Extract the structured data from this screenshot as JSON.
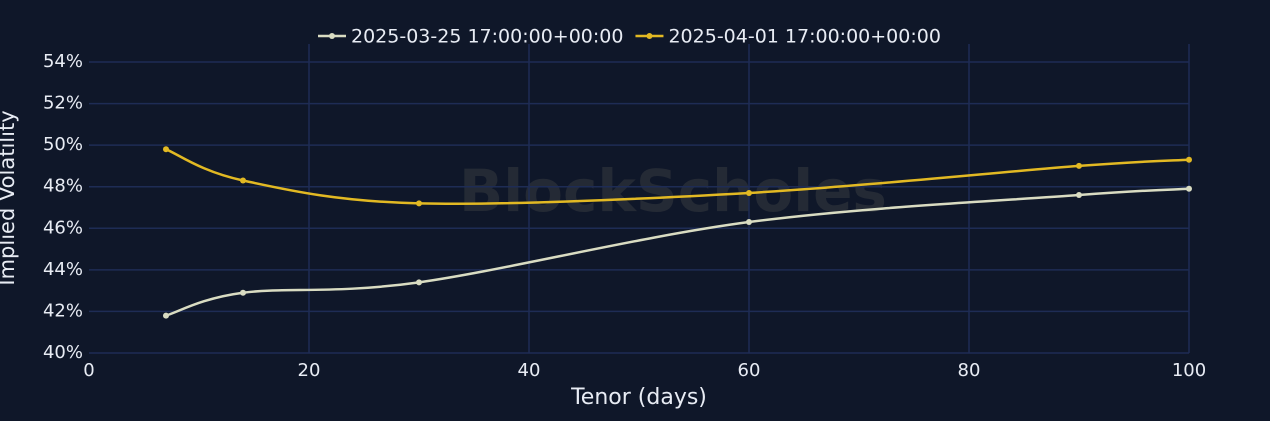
{
  "chart_data": {
    "type": "line",
    "watermark": "BlockScholes",
    "x_label": "Tenor (days)",
    "y_label": "Implied Volatility",
    "x": [
      7,
      14,
      30,
      60,
      90,
      100
    ],
    "series": [
      {
        "name": "2025-03-25 17:00:00+00:00",
        "color": "#d9dcc2",
        "values": [
          41.8,
          42.9,
          43.4,
          46.3,
          47.6,
          47.9
        ]
      },
      {
        "name": "2025-04-01 17:00:00+00:00",
        "color": "#e2b923",
        "values": [
          49.8,
          48.3,
          47.2,
          47.7,
          49.0,
          49.3
        ]
      }
    ],
    "xlim": [
      0,
      100
    ],
    "xticks": [
      0,
      20,
      40,
      60,
      80,
      100
    ],
    "ylim": [
      40,
      54
    ],
    "yticks": [
      {
        "value": 40,
        "label": "40%"
      },
      {
        "value": 42,
        "label": "42%"
      },
      {
        "value": 44,
        "label": "44%"
      },
      {
        "value": 46,
        "label": "46%"
      },
      {
        "value": 48,
        "label": "48%"
      },
      {
        "value": 50,
        "label": "50%"
      },
      {
        "value": 52,
        "label": "52%"
      },
      {
        "value": 54,
        "label": "54%"
      }
    ],
    "grid": true,
    "legend": "top"
  }
}
